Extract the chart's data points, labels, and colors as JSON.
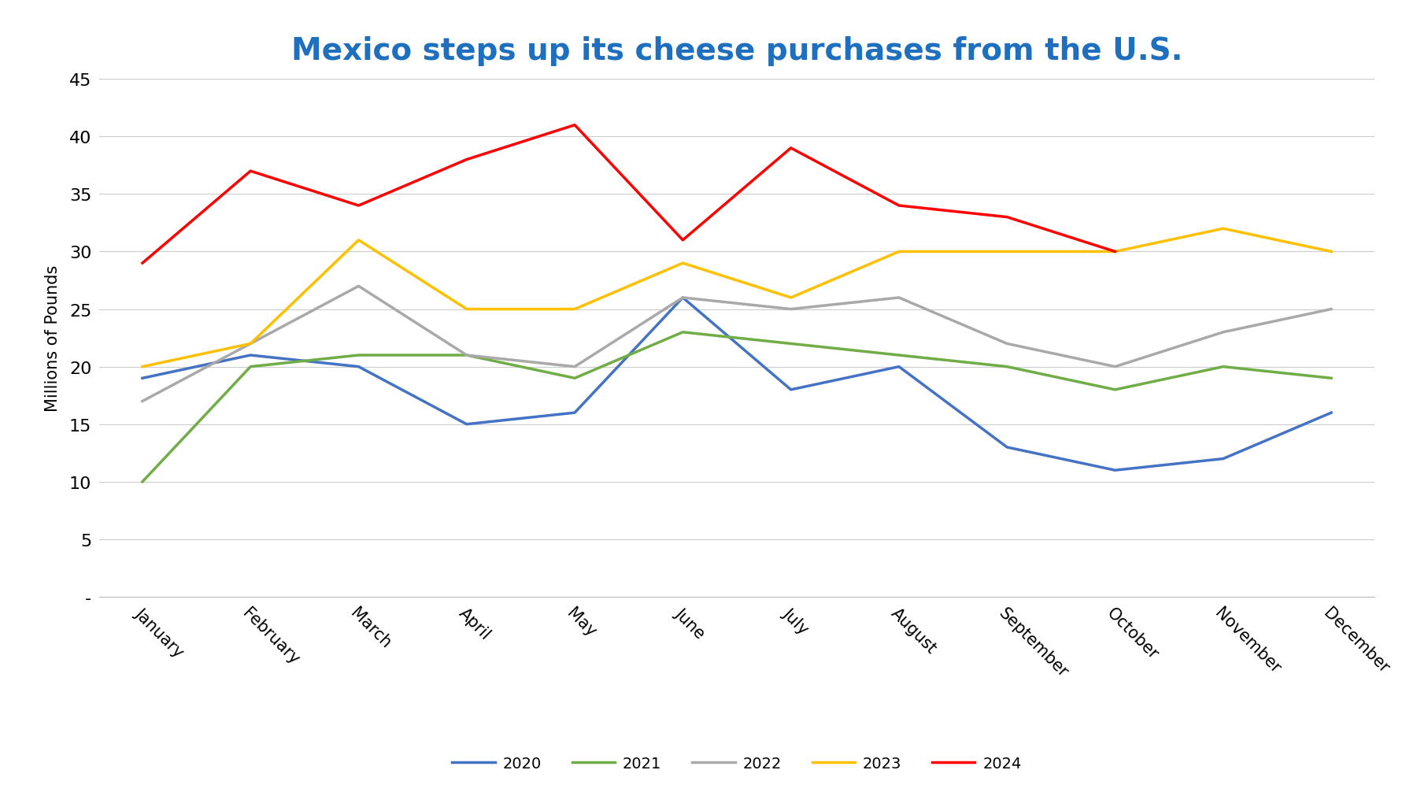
{
  "title": "Mexico steps up its cheese purchases from the U.S.",
  "ylabel": "Millions of Pounds",
  "months": [
    "January",
    "February",
    "March",
    "April",
    "May",
    "June",
    "July",
    "August",
    "September",
    "October",
    "November",
    "December"
  ],
  "series": {
    "2020": [
      19,
      21,
      20,
      15,
      16,
      26,
      18,
      20,
      13,
      11,
      12,
      16
    ],
    "2021": [
      10,
      20,
      21,
      21,
      19,
      23,
      22,
      21,
      20,
      18,
      20,
      19
    ],
    "2022": [
      17,
      22,
      27,
      21,
      20,
      26,
      25,
      26,
      22,
      20,
      23,
      25
    ],
    "2023": [
      20,
      22,
      31,
      25,
      25,
      29,
      26,
      30,
      30,
      30,
      32,
      30
    ],
    "2024": [
      29,
      37,
      34,
      38,
      41,
      31,
      39,
      34,
      33,
      30,
      null,
      null
    ]
  },
  "colors": {
    "2020": "#4472C4",
    "2021": "#70AD47",
    "2022": "#A9A9A9",
    "2023": "#FFC000",
    "2024": "#FF0000"
  },
  "ylim": [
    0,
    45
  ],
  "yticks": [
    0,
    5,
    10,
    15,
    20,
    25,
    30,
    35,
    40,
    45
  ],
  "ytick_labels": [
    "-",
    "5",
    "10",
    "15",
    "20",
    "25",
    "30",
    "35",
    "40",
    "45"
  ],
  "background_color": "#ffffff",
  "title_color": "#1F6FBF",
  "title_fontsize": 28,
  "legend_fontsize": 14,
  "axis_label_fontsize": 15,
  "ytick_fontsize": 16,
  "xtick_fontsize": 15,
  "line_width": 2.5
}
